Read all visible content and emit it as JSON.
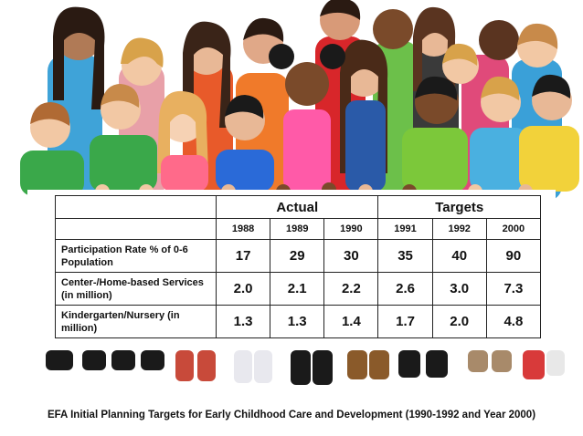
{
  "table": {
    "groups": [
      {
        "label": "Actual"
      },
      {
        "label": "Targets"
      }
    ],
    "years": [
      "1988",
      "1989",
      "1990",
      "1991",
      "1992",
      "2000"
    ],
    "rows": [
      {
        "label": "Participation Rate % of 0-6 Population",
        "values": [
          "17",
          "29",
          "30",
          "35",
          "40",
          "90"
        ]
      },
      {
        "label": "Center-/Home-based Services (in million)",
        "values": [
          "2.0",
          "2.1",
          "2.2",
          "2.6",
          "3.0",
          "7.3"
        ]
      },
      {
        "label": "Kindergarten/Nursery (in million)",
        "values": [
          "1.3",
          "1.3",
          "1.4",
          "1.7",
          "2.0",
          "4.8"
        ]
      }
    ]
  },
  "caption": "EFA Initial Planning Targets for Early Childhood Care and Development (1990-1992 and Year 2000)"
}
